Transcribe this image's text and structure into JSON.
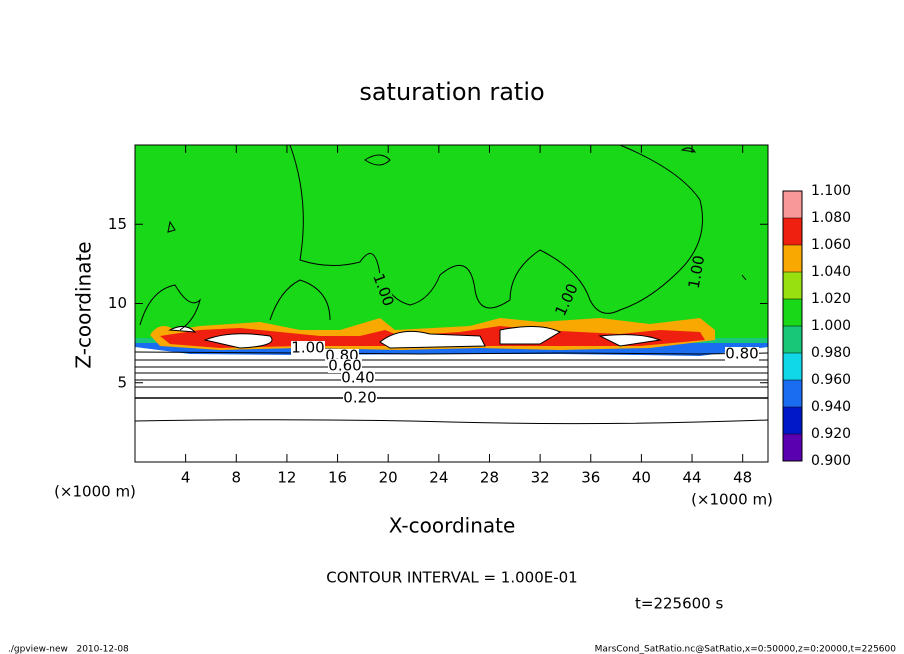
{
  "chart_data": {
    "type": "contour",
    "title": "saturation ratio",
    "xlabel": "X-coordinate",
    "ylabel": "Z-coordinate",
    "x_unit": "(×1000 m)",
    "y_unit": "(×1000 m)",
    "xlim": [
      0,
      50
    ],
    "xticks": [
      4,
      8,
      12,
      16,
      20,
      24,
      28,
      32,
      36,
      40,
      44,
      48
    ],
    "ylim": [
      0,
      20
    ],
    "yticks": [
      5,
      10,
      15
    ],
    "clim": [
      0.9,
      1.1
    ],
    "colorbar_ticks": [
      {
        "value": 0.9,
        "label": "0.900"
      },
      {
        "value": 0.92,
        "label": "0.920"
      },
      {
        "value": 0.94,
        "label": "0.940"
      },
      {
        "value": 0.96,
        "label": "0.960"
      },
      {
        "value": 0.98,
        "label": "0.980"
      },
      {
        "value": 1.0,
        "label": "1.000"
      },
      {
        "value": 1.02,
        "label": "1.020"
      },
      {
        "value": 1.04,
        "label": "1.040"
      },
      {
        "value": 1.06,
        "label": "1.060"
      },
      {
        "value": 1.08,
        "label": "1.080"
      },
      {
        "value": 1.1,
        "label": "1.100"
      }
    ],
    "colorbar_colors": [
      "#5a00b0",
      "#0018c8",
      "#1a6cf0",
      "#10d8e8",
      "#18c878",
      "#18d818",
      "#98e010",
      "#f8a800",
      "#f02010",
      "#f89898"
    ],
    "contour_labels": [
      "1.00",
      "1.00",
      "1.00",
      "1.00",
      "0.80",
      "0.80",
      "0.60",
      "0.40",
      "0.20"
    ],
    "annotation": "CONTOUR INTERVAL = 1.000E-01",
    "time_label": "t=225600 s",
    "footer_left": "./gpview-new   2010-12-08",
    "footer_right": "MarsCond_SatRatio.nc@SatRatio,x=0:50000,z=0:20000,t=225600"
  }
}
